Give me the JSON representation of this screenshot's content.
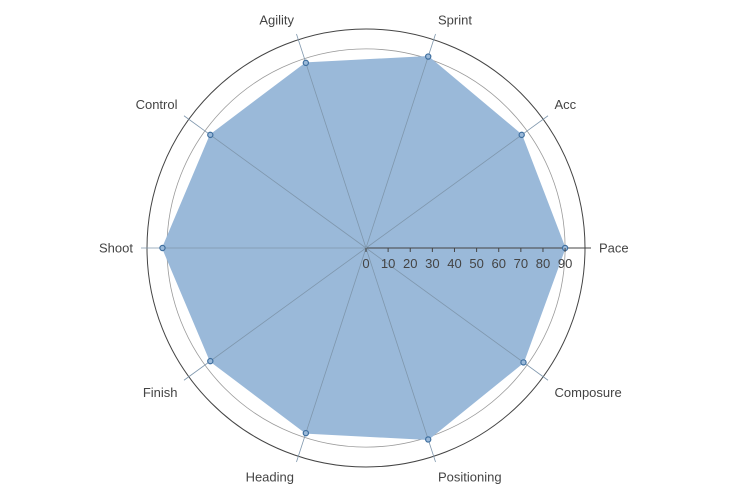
{
  "chart_data": {
    "type": "radar",
    "axes": [
      "Pace",
      "Acc",
      "Sprint",
      "Agility",
      "Control",
      "Shoot",
      "Finish",
      "Heading",
      "Positioning",
      "Composure"
    ],
    "series": [
      {
        "values": [
          90,
          87,
          91,
          88,
          87,
          92,
          87,
          88,
          91,
          88
        ]
      }
    ],
    "radial_ticks": [
      0,
      10,
      20,
      30,
      40,
      50,
      60,
      70,
      80,
      90
    ],
    "radial_range": [
      0,
      99
    ],
    "colors": {
      "fill": "#9ab9d9",
      "marker": "#3f6f9f",
      "grid": "#9a9a9a",
      "outer_ring": "#444444"
    }
  }
}
